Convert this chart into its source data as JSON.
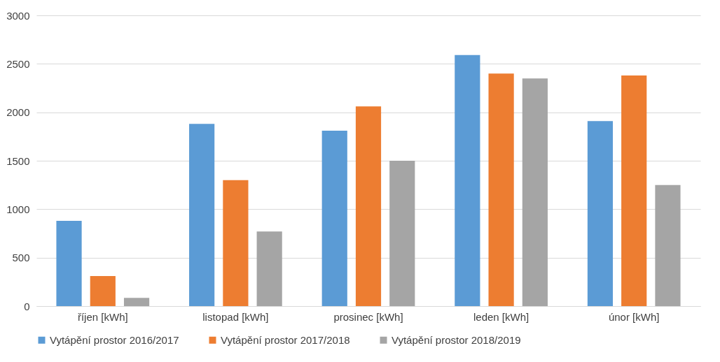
{
  "chart_data": {
    "type": "bar",
    "categories": [
      "říjen [kWh]",
      "listopad [kWh]",
      "prosinec [kWh]",
      "leden [kWh]",
      "únor [kWh]"
    ],
    "series": [
      {
        "name": "Vytápění prostor 2016/2017",
        "color": "#5b9bd5",
        "values": [
          880,
          1880,
          1810,
          2590,
          1910
        ]
      },
      {
        "name": "Vytápění prostor 2017/2018",
        "color": "#ed7d31",
        "values": [
          310,
          1300,
          2060,
          2400,
          2380
        ]
      },
      {
        "name": "Vytápění prostor 2018/2019",
        "color": "#a5a5a5",
        "values": [
          85,
          770,
          1500,
          2350,
          1250
        ]
      }
    ],
    "ylim": [
      0,
      3000
    ],
    "yticks": [
      0,
      500,
      1000,
      1500,
      2000,
      2500,
      3000
    ],
    "grid": "y",
    "legend": "bottom"
  }
}
